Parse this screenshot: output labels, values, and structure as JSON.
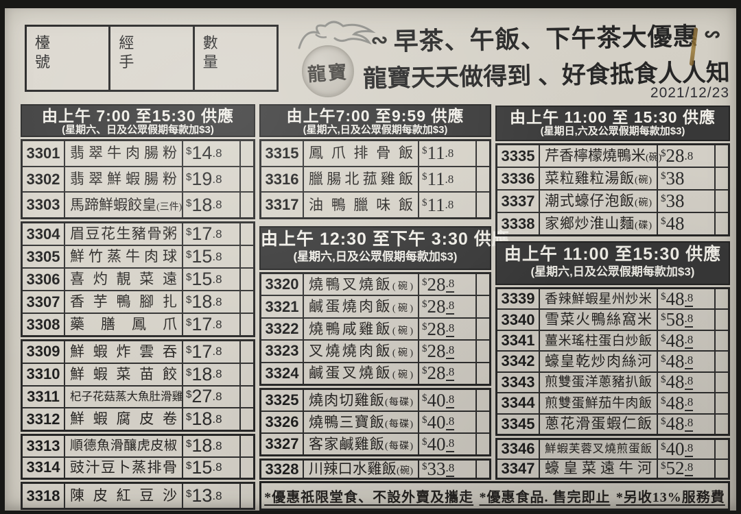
{
  "date": "2021/12/23",
  "order_box": {
    "fields": [
      {
        "label": "檯號"
      },
      {
        "label": "經手"
      },
      {
        "label": "數量"
      }
    ]
  },
  "masthead": {
    "logo_text": "龍寶",
    "deco": "∾",
    "title_line1": "早茶、午飯、下午茶大優惠",
    "title_line2": "龍寶天天做得到 、好食抵食人人知"
  },
  "colors": {
    "paper": "#d3cfc5",
    "ink": "#2b2b2b",
    "header_bg": "#383838",
    "header_text": "#f1efe8",
    "stain": "#9a7a38"
  },
  "columns": {
    "left": {
      "header": {
        "line1": "由上午 7:00 至15:30 供應",
        "line2": "(星期六、日及公眾假期每款加$3)"
      },
      "groups": [
        [
          {
            "num": "3301",
            "name": "翡翠牛肉腸粉",
            "price": "14.8"
          },
          {
            "num": "3302",
            "name": "翡翠鮮蝦腸粉",
            "price": "19.8"
          },
          {
            "num": "3303",
            "name": "馬蹄鮮蝦餃皇",
            "note": "(三件)",
            "price": "18.8"
          }
        ],
        [
          {
            "num": "3304",
            "name": "眉豆花生豬骨粥",
            "price": "17.8"
          },
          {
            "num": "3305",
            "name": "鮮竹蒸牛肉球",
            "price": "15.8"
          },
          {
            "num": "3306",
            "name": "喜灼靚菜遠",
            "price": "15.8"
          },
          {
            "num": "3307",
            "name": "香芋鴨腳扎",
            "price": "18.8"
          },
          {
            "num": "3308",
            "name": "藥膳鳳爪",
            "price": "17.8"
          }
        ],
        [
          {
            "num": "3309",
            "name": "鮮蝦炸雲吞",
            "price": "17.8"
          },
          {
            "num": "3310",
            "name": "鮮蝦菜苗餃",
            "price": "18.8"
          },
          {
            "num": "3311",
            "name": "杞子花菇蒸大魚肚滑雞",
            "price": "27.8"
          },
          {
            "num": "3312",
            "name": "鮮蝦腐皮卷",
            "price": "18.8"
          }
        ],
        [
          {
            "num": "3313",
            "name": "順德魚滑釀虎皮椒",
            "price": "18.8"
          },
          {
            "num": "3314",
            "name": "豉汁豆卜蒸排骨",
            "price": "15.8"
          }
        ],
        [
          {
            "num": "3318",
            "name": "陳皮紅豆沙",
            "price": "13.8"
          }
        ]
      ]
    },
    "middle": {
      "section1": {
        "header": {
          "line1": "由上午7:00 至9:59 供應",
          "line2": "(星期六,日及公眾假期每款加$3)"
        },
        "groups": [
          [
            {
              "num": "3315",
              "name": "鳳爪排骨飯",
              "price": "11.8"
            },
            {
              "num": "3316",
              "name": "臘腸北菰雞飯",
              "price": "11.8"
            },
            {
              "num": "3317",
              "name": "油鴨臘味飯",
              "price": "11.8"
            }
          ]
        ]
      },
      "section2": {
        "header": {
          "line1": "由上午 12:30 至下午 3:30 供應",
          "line2": "(星期六,日及公眾假期每款加$3)"
        },
        "groups": [
          [
            {
              "num": "3320",
              "name": "燒鴨叉燒飯",
              "note": "(碗)",
              "price": "28.8"
            },
            {
              "num": "3321",
              "name": "鹹蛋燒肉飯",
              "note": "(碗)",
              "price": "28.8"
            },
            {
              "num": "3322",
              "name": "燒鴨咸雞飯",
              "note": "(碗)",
              "price": "28.8"
            },
            {
              "num": "3323",
              "name": "叉燒燒肉飯",
              "note": "(碗)",
              "price": "28.8"
            },
            {
              "num": "3324",
              "name": "鹹蛋叉燒飯",
              "note": "(碗)",
              "price": "28.8"
            }
          ],
          [
            {
              "num": "3325",
              "name": "燒肉切雞飯",
              "note": "(每碟)",
              "price": "40.8"
            },
            {
              "num": "3326",
              "name": "燒鴨三寶飯",
              "note": "(每碟)",
              "price": "40.8"
            },
            {
              "num": "3327",
              "name": "客家鹹雞飯",
              "note": "(每碟)",
              "price": "40.8"
            }
          ],
          [
            {
              "num": "3328",
              "name": "川辣口水雞飯",
              "note": "(碗)",
              "price": "33.8"
            }
          ]
        ]
      }
    },
    "right": {
      "section1": {
        "header": {
          "line1": "由上午 11:00 至 15:30 供應",
          "line2": "(星期日,六及公眾假期每款加$3)"
        },
        "groups": [
          [
            {
              "num": "3335",
              "name": "芹香檸檬燒鴨米",
              "note": "(碗)",
              "price": "28.8"
            },
            {
              "num": "3336",
              "name": "菜粒雞粒湯飯",
              "note": "(碗)",
              "price": "38"
            },
            {
              "num": "3337",
              "name": "潮式蠔仔泡飯",
              "note": "(碗)",
              "price": "38"
            },
            {
              "num": "3338",
              "name": "家鄉炒淮山麵",
              "note": "(碟)",
              "price": "48"
            }
          ]
        ]
      },
      "section2": {
        "header": {
          "line1": "由上午 11:00 至15:30 供應",
          "line2": "(星期六,日及公眾假期每款加$3)"
        },
        "groups": [
          [
            {
              "num": "3339",
              "name": "香辣鮮蝦星州炒米",
              "price": "48.8"
            },
            {
              "num": "3340",
              "name": "雪菜火鴨絲窩米",
              "price": "58.8"
            },
            {
              "num": "3341",
              "name": "薑米瑤柱蛋白炒飯",
              "price": "48.8"
            },
            {
              "num": "3342",
              "name": "蠔皇乾炒肉絲河",
              "price": "48.8"
            },
            {
              "num": "3343",
              "name": "煎雙蛋洋蔥豬扒飯",
              "price": "48.8"
            },
            {
              "num": "3344",
              "name": "煎雙蛋鮮茄牛肉飯",
              "price": "48.8"
            },
            {
              "num": "3345",
              "name": "蔥花滑蛋蝦仁飯",
              "price": "48.8"
            }
          ],
          [
            {
              "num": "3346",
              "name": "鮮蝦芙蓉叉燒煎蛋飯",
              "price": "40.8"
            },
            {
              "num": "3347",
              "name": "蠔皇菜遠牛河",
              "price": "52.8"
            }
          ]
        ]
      }
    }
  },
  "footnotes": [
    "*優惠祇限堂食、不設外賣及攜走",
    "*優惠食品. 售完即止",
    "*另收13%服務費"
  ]
}
